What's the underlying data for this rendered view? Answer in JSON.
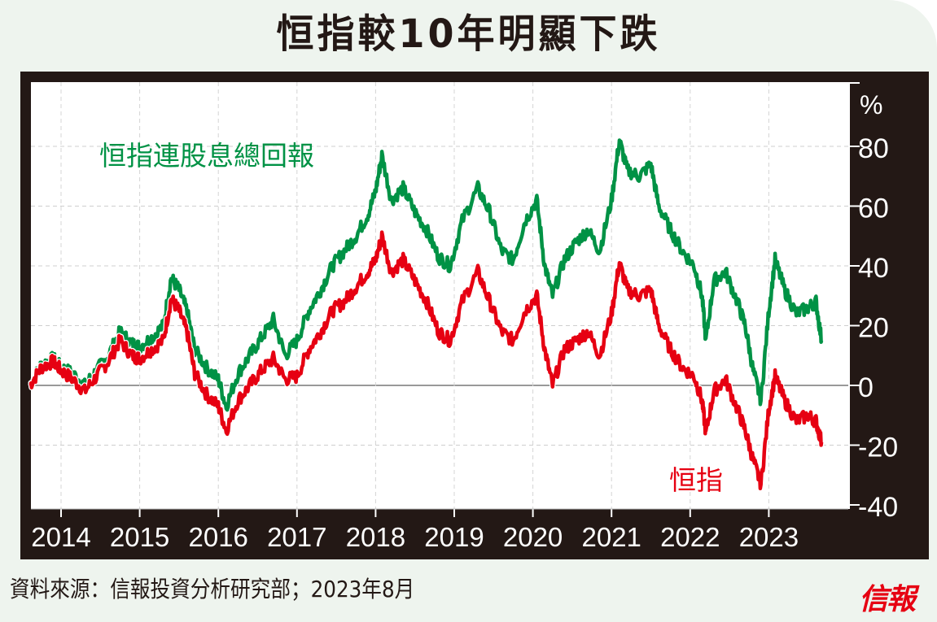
{
  "title": "恒指較10年明顯下跌",
  "source": "資料來源：信報投資分析研究部；2023年8月",
  "logo": "信報",
  "colors": {
    "background": "#eef4ee",
    "frame": "#231815",
    "plot_bg": "#ffffff",
    "total_return": "#009245",
    "hsi": "#e60012",
    "grid": "#cccccc",
    "zero_line": "#999999"
  },
  "chart_data": {
    "type": "line",
    "title": "恒指較10年明顯下跌",
    "xlabel": "",
    "ylabel": "%",
    "ylim": [
      -40,
      90
    ],
    "yticks": [
      80,
      60,
      40,
      20,
      0,
      -20,
      -40
    ],
    "xticks": [
      "2014",
      "2015",
      "2016",
      "2017",
      "2018",
      "2019",
      "2020",
      "2021",
      "2022",
      "2023"
    ],
    "grid": true,
    "legend_position": "inline annotations",
    "annotations": [
      {
        "text": "恒指連股息總回報",
        "series": "total_return",
        "position": "upper-left"
      },
      {
        "text": "恒指",
        "series": "hsi",
        "position": "lower-right"
      }
    ],
    "x": [
      2013.6,
      2013.75,
      2013.9,
      2014.0,
      2014.15,
      2014.3,
      2014.45,
      2014.6,
      2014.75,
      2014.9,
      2015.0,
      2015.15,
      2015.3,
      2015.4,
      2015.5,
      2015.6,
      2015.7,
      2015.85,
      2016.0,
      2016.1,
      2016.25,
      2016.4,
      2016.55,
      2016.7,
      2016.85,
      2017.0,
      2017.15,
      2017.3,
      2017.45,
      2017.6,
      2017.75,
      2017.9,
      2018.0,
      2018.08,
      2018.2,
      2018.35,
      2018.5,
      2018.65,
      2018.8,
      2018.95,
      2019.1,
      2019.3,
      2019.45,
      2019.6,
      2019.75,
      2019.9,
      2020.05,
      2020.15,
      2020.25,
      2020.4,
      2020.55,
      2020.7,
      2020.85,
      2021.0,
      2021.1,
      2021.2,
      2021.35,
      2021.5,
      2021.6,
      2021.75,
      2021.9,
      2022.05,
      2022.15,
      2022.2,
      2022.3,
      2022.45,
      2022.6,
      2022.7,
      2022.8,
      2022.9,
      2023.0,
      2023.08,
      2023.2,
      2023.35,
      2023.5,
      2023.6,
      2023.67
    ],
    "series": [
      {
        "name": "恒指連股息總回報",
        "key": "total_return",
        "color": "#009245",
        "values": [
          0,
          7,
          9,
          6,
          4,
          0,
          5,
          10,
          18,
          14,
          13,
          16,
          20,
          36,
          32,
          25,
          12,
          6,
          2,
          -7,
          4,
          10,
          16,
          22,
          10,
          15,
          25,
          32,
          40,
          45,
          50,
          57,
          65,
          77,
          62,
          66,
          58,
          52,
          43,
          40,
          55,
          66,
          58,
          45,
          42,
          55,
          62,
          40,
          30,
          42,
          48,
          52,
          45,
          62,
          82,
          72,
          70,
          74,
          60,
          52,
          45,
          40,
          30,
          15,
          35,
          38,
          28,
          20,
          5,
          -5,
          25,
          42,
          32,
          24,
          26,
          28,
          15
        ]
      },
      {
        "name": "恒指",
        "key": "hsi",
        "color": "#e60012",
        "values": [
          0,
          6,
          8,
          5,
          2,
          -2,
          3,
          8,
          15,
          10,
          9,
          12,
          15,
          29,
          25,
          18,
          4,
          -3,
          -7,
          -15,
          -5,
          0,
          5,
          9,
          2,
          3,
          12,
          18,
          25,
          28,
          33,
          38,
          42,
          50,
          38,
          42,
          35,
          28,
          18,
          15,
          28,
          38,
          28,
          18,
          15,
          25,
          30,
          12,
          0,
          12,
          15,
          18,
          10,
          24,
          41,
          32,
          30,
          32,
          20,
          12,
          6,
          3,
          -5,
          -16,
          -2,
          2,
          -8,
          -15,
          -25,
          -33,
          -8,
          3,
          -5,
          -12,
          -10,
          -12,
          -19
        ]
      }
    ]
  }
}
